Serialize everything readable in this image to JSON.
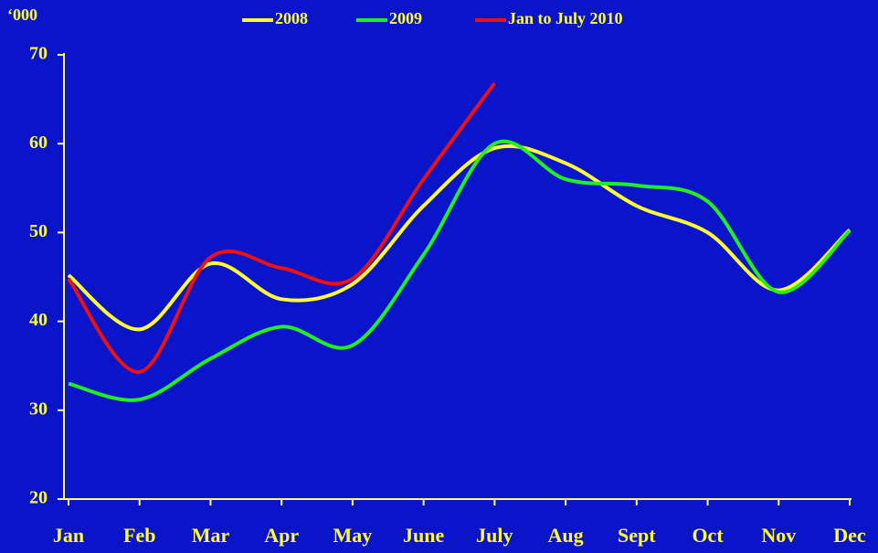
{
  "chart_data": {
    "type": "line",
    "unit_label": "‘000",
    "categories": [
      "Jan",
      "Feb",
      "Mar",
      "Apr",
      "May",
      "June",
      "July",
      "Aug",
      "Sept",
      "Oct",
      "Nov",
      "Dec"
    ],
    "series": [
      {
        "name": "2008",
        "color": "#ffff33",
        "values": [
          45.2,
          39.1,
          46.5,
          42.5,
          44.2,
          53,
          59.5,
          57.8,
          53,
          50,
          43.5,
          50.3
        ]
      },
      {
        "name": "2009",
        "color": "#22ee22",
        "values": [
          33,
          31.2,
          35.8,
          39.4,
          37.3,
          47.5,
          60,
          56,
          55.3,
          53.5,
          43.3,
          50.2
        ]
      },
      {
        "name": "Jan to July 2010",
        "color": "#ee1111",
        "values": [
          44.8,
          34.3,
          47.2,
          46,
          44.8,
          56,
          66.8,
          null,
          null,
          null,
          null,
          null
        ]
      }
    ],
    "ylim": [
      20,
      70
    ],
    "yticks": [
      20,
      30,
      40,
      50,
      60,
      70
    ],
    "grid": false
  }
}
